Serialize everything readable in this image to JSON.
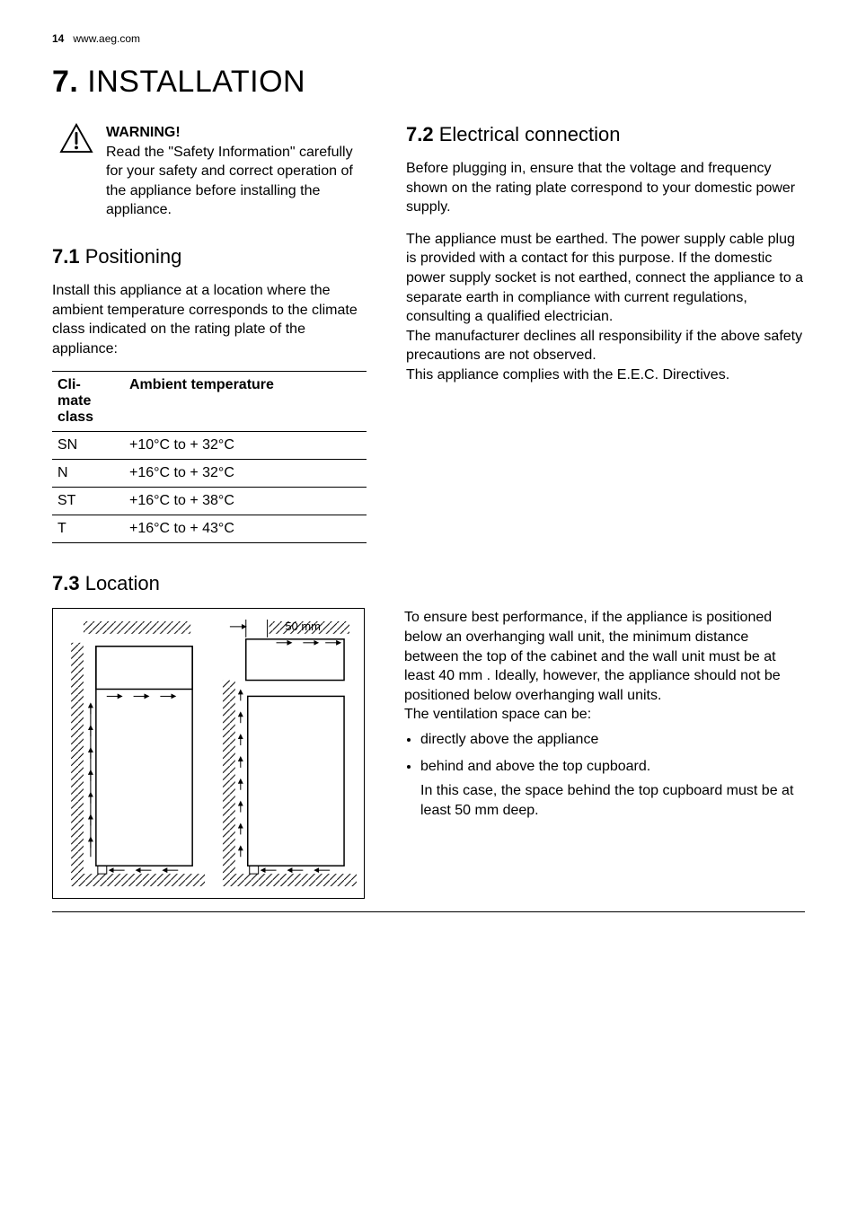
{
  "header": {
    "page_number": "14",
    "url": "www.aeg.com"
  },
  "title": {
    "number": "7.",
    "text": " INSTALLATION"
  },
  "warning": {
    "heading": "WARNING!",
    "body": "Read the \"Safety Information\" carefully for your safety and correct operation of the appliance before installing the appliance."
  },
  "s71": {
    "num": "7.1",
    "title": " Positioning",
    "intro": "Install this appliance at a location where the ambient temperature corresponds to the climate class indicated on the rating plate of the appliance:",
    "table": {
      "col1_header": "Climate class",
      "col2_header": "Ambient temperature",
      "rows": [
        {
          "c": "SN",
          "t": "+10°C to + 32°C"
        },
        {
          "c": "N",
          "t": "+16°C to + 32°C"
        },
        {
          "c": "ST",
          "t": "+16°C to + 38°C"
        },
        {
          "c": "T",
          "t": "+16°C to + 43°C"
        }
      ]
    }
  },
  "s72": {
    "num": "7.2",
    "title": " Electrical connection",
    "p1": "Before plugging in, ensure that the voltage and frequency shown on the rating plate correspond to your domestic power supply.",
    "p2": "The appliance must be earthed. The power supply cable plug is provided with a contact for this purpose. If the domestic power supply socket is not earthed, connect the appliance to a separate earth in compliance with current regulations, consulting a qualified electrician.",
    "p3": "The manufacturer declines all responsibility if the above safety precautions are not observed.",
    "p4": "This appliance complies with the E.E.C. Directives."
  },
  "s73": {
    "num": "7.3",
    "title": " Location",
    "diagram_label": "50 mm",
    "p1": "To ensure best performance, if the appliance is positioned below an overhanging wall unit, the minimum distance between the top of the cabinet and the wall unit must be at least 40 mm . Ideally, however, the appliance should not be positioned below overhanging wall units.",
    "p2": "The ventilation space can be:",
    "bullets": [
      "directly above the appliance",
      "behind and above the top cupboard."
    ],
    "p3": "In this case, the space behind the top cupboard must be at least 50 mm deep."
  },
  "colors": {
    "text": "#000000",
    "bg": "#ffffff",
    "line": "#000000"
  }
}
